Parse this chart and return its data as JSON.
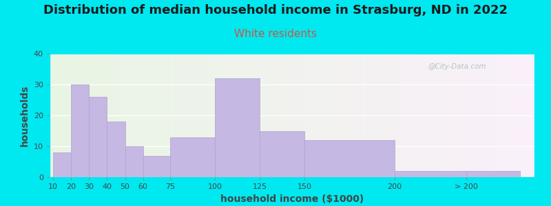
{
  "title": "Distribution of median household income in Strasburg, ND in 2022",
  "subtitle": "White residents",
  "xlabel": "household income ($1000)",
  "ylabel": "households",
  "bar_labels": [
    "10",
    "20",
    "30",
    "40",
    "50",
    "60",
    "75",
    "100",
    "125",
    "150",
    "200",
    "> 200"
  ],
  "bar_heights": [
    8,
    30,
    26,
    18,
    10,
    7,
    13,
    32,
    15,
    12,
    2,
    2
  ],
  "bar_left_edges": [
    10,
    20,
    30,
    40,
    50,
    60,
    75,
    100,
    125,
    150,
    200,
    240
  ],
  "bar_widths": [
    10,
    10,
    10,
    10,
    10,
    15,
    25,
    25,
    25,
    50,
    40,
    30
  ],
  "tick_positions": [
    10,
    20,
    30,
    40,
    50,
    60,
    75,
    100,
    125,
    150,
    200,
    240
  ],
  "bar_color": "#c5b8e3",
  "bar_edge_color": "#b0a0d0",
  "ylim": [
    0,
    40
  ],
  "yticks": [
    0,
    10,
    20,
    30,
    40
  ],
  "xlim_left": 8,
  "xlim_right": 278,
  "background_outer": "#00e8f0",
  "title_fontsize": 13,
  "subtitle_fontsize": 11,
  "subtitle_color": "#cc5544",
  "axis_label_fontsize": 10,
  "watermark_text": "@City-Data.com",
  "watermark_color": "#aabbbb"
}
